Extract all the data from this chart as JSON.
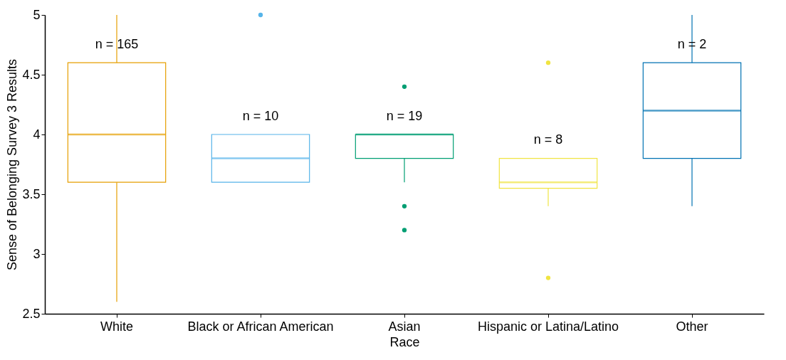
{
  "chart_data": {
    "type": "box",
    "xlabel": "Race",
    "ylabel": "Sense of Belonging Survey 3 Results",
    "categories": [
      "White",
      "Black or African American",
      "Asian",
      "Hispanic or Latina/Latino",
      "Other"
    ],
    "colors": [
      "#e69f00",
      "#56b4e9",
      "#009e73",
      "#f0e442",
      "#0072b2"
    ],
    "boxes": [
      {
        "low": 2.6,
        "q1": 3.6,
        "median": 4.0,
        "q3": 4.6,
        "high": 5.0
      },
      {
        "low": 3.6,
        "q1": 3.6,
        "median": 3.8,
        "q3": 4.0,
        "high": 4.0,
        "outliers": [
          5.0
        ]
      },
      {
        "low": 3.6,
        "q1": 3.8,
        "median": 4.0,
        "q3": 4.0,
        "high": 4.0,
        "outliers": [
          4.4,
          3.4,
          3.2
        ]
      },
      {
        "low": 3.4,
        "q1": 3.55,
        "median": 3.6,
        "q3": 3.8,
        "high": 3.8,
        "outliers": [
          4.6,
          2.8
        ]
      },
      {
        "low": 3.4,
        "q1": 3.8,
        "median": 4.2,
        "q3": 4.6,
        "high": 5.0
      }
    ],
    "ylim": [
      2.5,
      5.0
    ],
    "yticks": [
      2.5,
      3.0,
      3.5,
      4.0,
      4.5,
      5.0
    ],
    "grid": false,
    "annotations": [
      "n = 165",
      "n = 10",
      "n = 19",
      "n = 8",
      "n = 2"
    ]
  }
}
